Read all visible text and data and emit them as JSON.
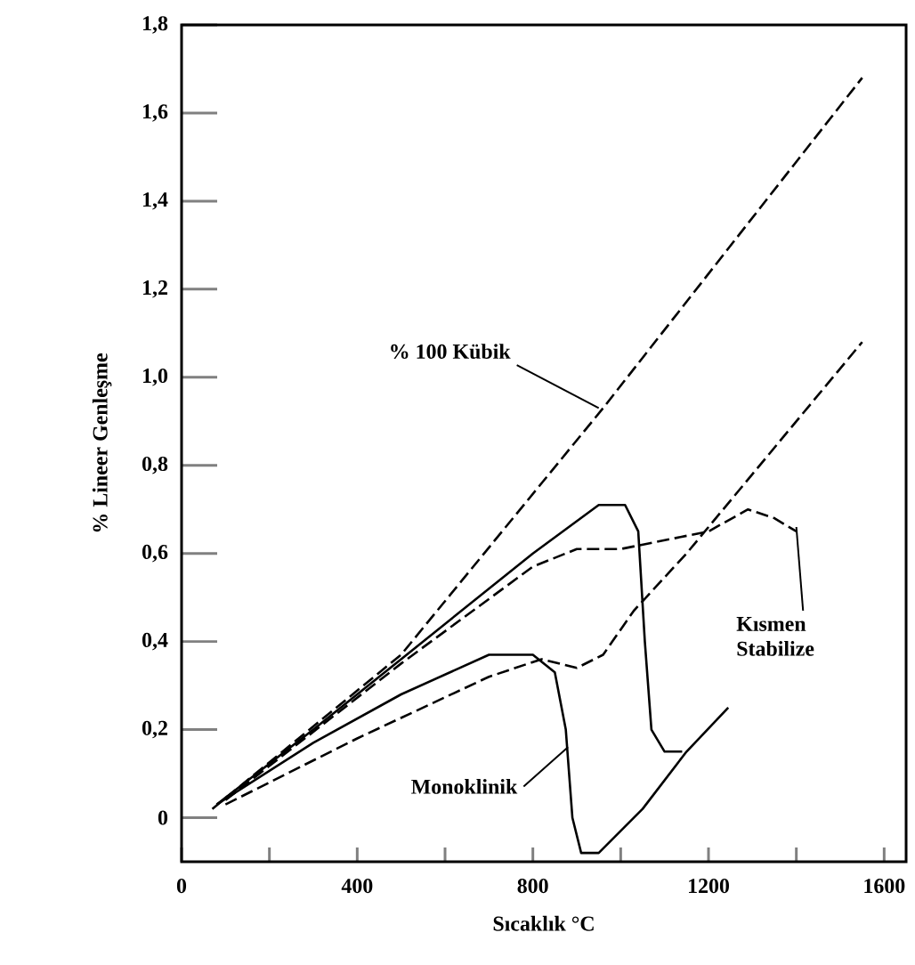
{
  "chart_data": {
    "type": "line",
    "xlabel": "Sıcaklık °C",
    "ylabel": "% Lineer Genleşme",
    "xlim": [
      0,
      1650
    ],
    "ylim": [
      -0.1,
      1.8
    ],
    "xticks": [
      0,
      {
        "value": 200,
        "label": null
      },
      400,
      {
        "value": 600,
        "label": null
      },
      800,
      {
        "value": 1000,
        "label": null
      },
      1200,
      {
        "value": 1400,
        "label": null
      },
      1600
    ],
    "yticks": [
      0,
      {
        "value": 0.2,
        "label": "0,2"
      },
      {
        "value": 0.4,
        "label": "0,4"
      },
      {
        "value": 0.6,
        "label": "0,6"
      },
      {
        "value": 0.8,
        "label": "0,8"
      },
      {
        "value": 1.0,
        "label": "1,0"
      },
      {
        "value": 1.2,
        "label": "1,2"
      },
      {
        "value": 1.4,
        "label": "1,4"
      },
      {
        "value": 1.6,
        "label": "1,6"
      },
      {
        "value": 1.8,
        "label": "1,8"
      }
    ],
    "marker": "none",
    "series": [
      {
        "color": "#000000",
        "line_style": "dashed",
        "x": [
          70,
          500,
          960,
          1550
        ],
        "values": [
          0.02,
          0.37,
          0.93,
          1.68
        ]
      },
      {
        "color": "#000000",
        "line_style": "solid",
        "x": [
          80,
          300,
          500,
          800,
          950,
          1010,
          1040,
          1055,
          1070,
          1100,
          1140
        ],
        "values": [
          0.03,
          0.2,
          0.36,
          0.6,
          0.71,
          0.71,
          0.65,
          0.4,
          0.2,
          0.15,
          0.15
        ]
      },
      {
        "color": "#000000",
        "line_style": "solid",
        "x": [
          80,
          300,
          500,
          700,
          800,
          850,
          875,
          890,
          910,
          950,
          1050,
          1150,
          1245
        ],
        "values": [
          0.03,
          0.17,
          0.28,
          0.37,
          0.37,
          0.33,
          0.2,
          0.0,
          -0.08,
          -0.08,
          0.02,
          0.15,
          0.25
        ]
      },
      {
        "color": "#000000",
        "line_style": "dashed",
        "x": [
          100,
          400,
          700,
          820,
          900,
          960,
          1030,
          1150,
          1300,
          1550
        ],
        "values": [
          0.03,
          0.18,
          0.32,
          0.36,
          0.34,
          0.37,
          0.47,
          0.6,
          0.78,
          1.08
        ]
      },
      {
        "color": "#000000",
        "line_style": "dashed",
        "x": [
          100,
          500,
          800,
          900,
          1000,
          1200,
          1290,
          1350,
          1400
        ],
        "values": [
          0.04,
          0.35,
          0.57,
          0.61,
          0.61,
          0.65,
          0.7,
          0.68,
          0.65
        ]
      }
    ],
    "annotations": [
      {
        "text": "% 100 Kübik",
        "x": 950,
        "y": 0.93
      },
      {
        "text": "Kısmen Stabilize",
        "x": 1400,
        "y": 0.66
      },
      {
        "text": "Monoklinik",
        "x": 880,
        "y": 0.16
      }
    ]
  }
}
